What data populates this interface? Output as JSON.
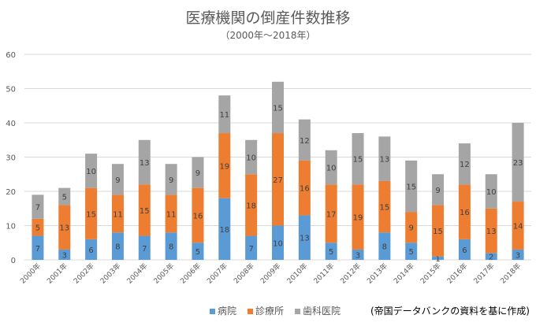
{
  "chart_data": {
    "type": "bar",
    "stacked": true,
    "title": "医療機関の倒産件数推移",
    "subtitle": "（2000年～2018年）",
    "categories": [
      "2000年",
      "2001年",
      "2002年",
      "2003年",
      "2004年",
      "2005年",
      "2006年",
      "2007年",
      "2008年",
      "2009年",
      "2010年",
      "2011年",
      "2012年",
      "2013年",
      "2014年",
      "2015年",
      "2016年",
      "2017年",
      "2018年"
    ],
    "series": [
      {
        "name": "病院",
        "color": "#5b9bd5",
        "values": [
          7,
          3,
          6,
          8,
          7,
          8,
          5,
          18,
          7,
          10,
          13,
          5,
          3,
          8,
          5,
          1,
          6,
          2,
          3
        ]
      },
      {
        "name": "診療所",
        "color": "#ed7d31",
        "values": [
          5,
          13,
          15,
          11,
          15,
          11,
          16,
          19,
          18,
          27,
          16,
          17,
          19,
          15,
          9,
          15,
          16,
          13,
          14
        ]
      },
      {
        "name": "歯科医院",
        "color": "#a5a5a5",
        "values": [
          7,
          5,
          10,
          9,
          13,
          9,
          9,
          11,
          10,
          15,
          12,
          10,
          15,
          13,
          15,
          9,
          12,
          10,
          23
        ]
      }
    ],
    "ylim": [
      0,
      60
    ],
    "yticks": [
      0,
      10,
      20,
      30,
      40,
      50,
      60
    ],
    "grid": true,
    "legend": "bottom",
    "source": "(帝国データバンクの資料を基に作成)"
  }
}
